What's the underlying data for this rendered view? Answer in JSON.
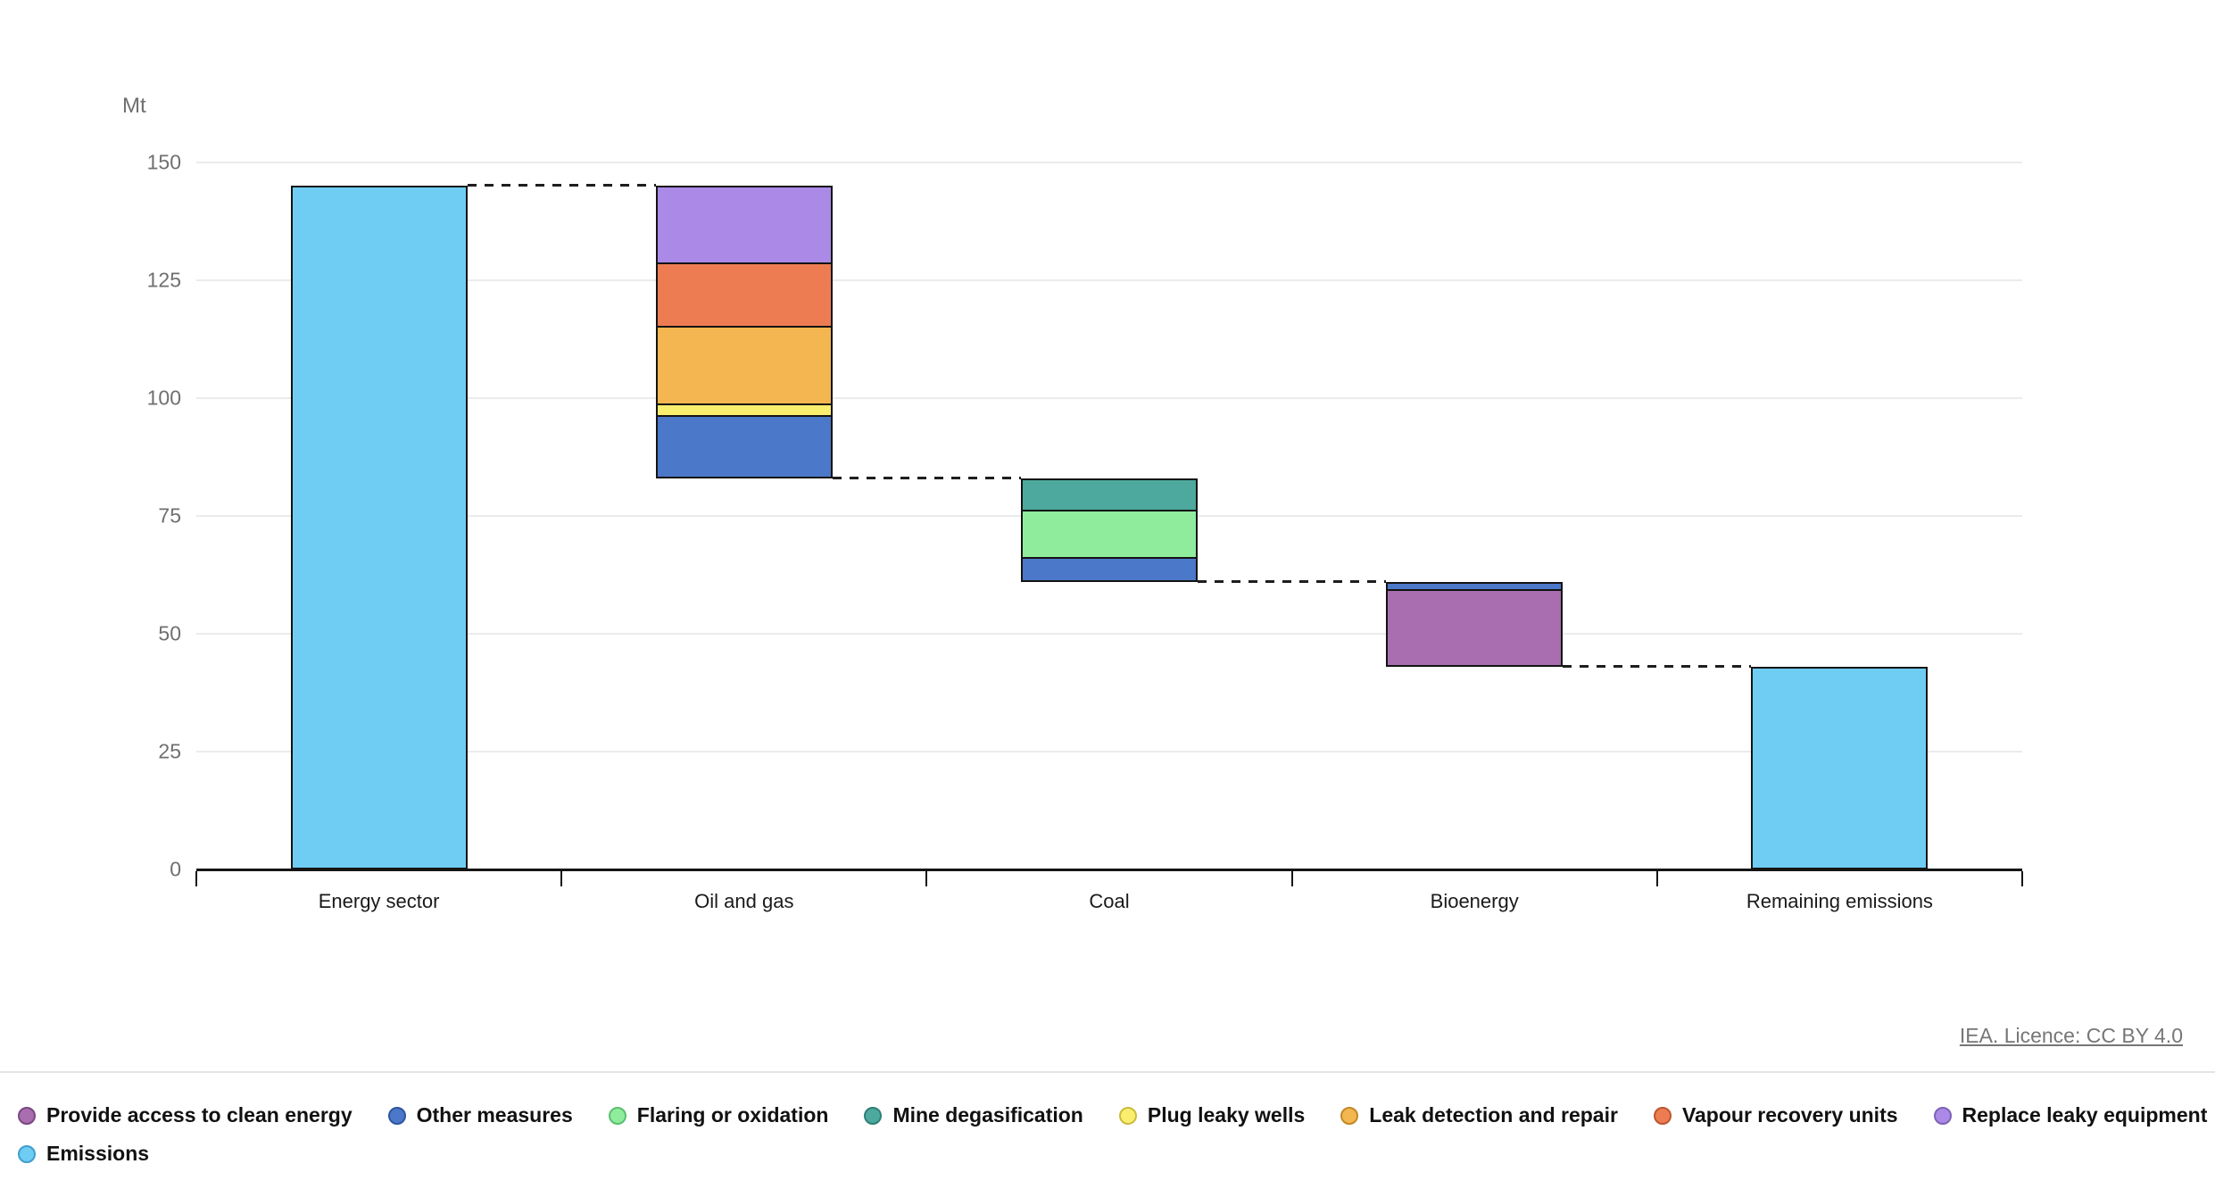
{
  "chart_data": {
    "type": "waterfall",
    "title": "",
    "unit_label": "Mt",
    "ylim": [
      0,
      150
    ],
    "ytick_step": 25,
    "grid": true,
    "categories": [
      "Energy sector",
      "Oil and gas",
      "Coal",
      "Bioenergy",
      "Remaining emissions"
    ],
    "bars": [
      {
        "category": "Energy sector",
        "segments": [
          {
            "measure": "Emissions",
            "from": 0,
            "to": 145
          }
        ]
      },
      {
        "category": "Oil and gas",
        "segments": [
          {
            "measure": "Other measures",
            "from": 83,
            "to": 96
          },
          {
            "measure": "Plug leaky wells",
            "from": 96,
            "to": 98.5
          },
          {
            "measure": "Leak detection and repair",
            "from": 98.5,
            "to": 115
          },
          {
            "measure": "Vapour recovery units",
            "from": 115,
            "to": 128.5
          },
          {
            "measure": "Replace leaky equipment",
            "from": 128.5,
            "to": 145
          }
        ]
      },
      {
        "category": "Coal",
        "segments": [
          {
            "measure": "Other measures",
            "from": 61,
            "to": 66
          },
          {
            "measure": "Flaring or oxidation",
            "from": 66,
            "to": 76
          },
          {
            "measure": "Mine degasification",
            "from": 76,
            "to": 83
          }
        ]
      },
      {
        "category": "Bioenergy",
        "segments": [
          {
            "measure": "Provide access to clean energy",
            "from": 43,
            "to": 59
          },
          {
            "measure": "Other measures",
            "from": 59,
            "to": 61
          }
        ]
      },
      {
        "category": "Remaining emissions",
        "segments": [
          {
            "measure": "Emissions",
            "from": 0,
            "to": 43
          }
        ]
      }
    ],
    "connectors": [
      {
        "level": 145,
        "from_bar": 0,
        "to_bar": 1
      },
      {
        "level": 83,
        "from_bar": 1,
        "to_bar": 2
      },
      {
        "level": 61,
        "from_bar": 2,
        "to_bar": 3
      },
      {
        "level": 43,
        "from_bar": 3,
        "to_bar": 4
      }
    ],
    "colors": {
      "Emissions": {
        "fill": "#6FCDF4",
        "stroke": "#3F9ECB"
      },
      "Other measures": {
        "fill": "#4B78C8",
        "stroke": "#2F55A0"
      },
      "Flaring or oxidation": {
        "fill": "#90EC9D",
        "stroke": "#5BBF70"
      },
      "Mine degasification": {
        "fill": "#4DA99D",
        "stroke": "#2E7F75"
      },
      "Plug leaky wells": {
        "fill": "#FAEE6E",
        "stroke": "#C9BC3F"
      },
      "Leak detection and repair": {
        "fill": "#F3B650",
        "stroke": "#C08A28"
      },
      "Vapour recovery units": {
        "fill": "#EE7C52",
        "stroke": "#BC5530"
      },
      "Replace leaky equipment": {
        "fill": "#AA8AE6",
        "stroke": "#7D62B5"
      },
      "Provide access to clean energy": {
        "fill": "#A86EAF",
        "stroke": "#7C4683"
      }
    }
  },
  "y_axis": {
    "unit_label": "Mt",
    "tick_labels": [
      "0",
      "25",
      "50",
      "75",
      "100",
      "125",
      "150"
    ]
  },
  "legend": {
    "rows": [
      [
        "Provide access to clean energy",
        "Other measures",
        "Flaring or oxidation",
        "Mine degasification",
        "Plug leaky wells",
        "Leak detection and repair",
        "Vapour recovery units",
        "Replace leaky equipment"
      ],
      [
        "Emissions"
      ]
    ]
  },
  "footer": {
    "license_text": "IEA. Licence: CC BY 4.0"
  }
}
